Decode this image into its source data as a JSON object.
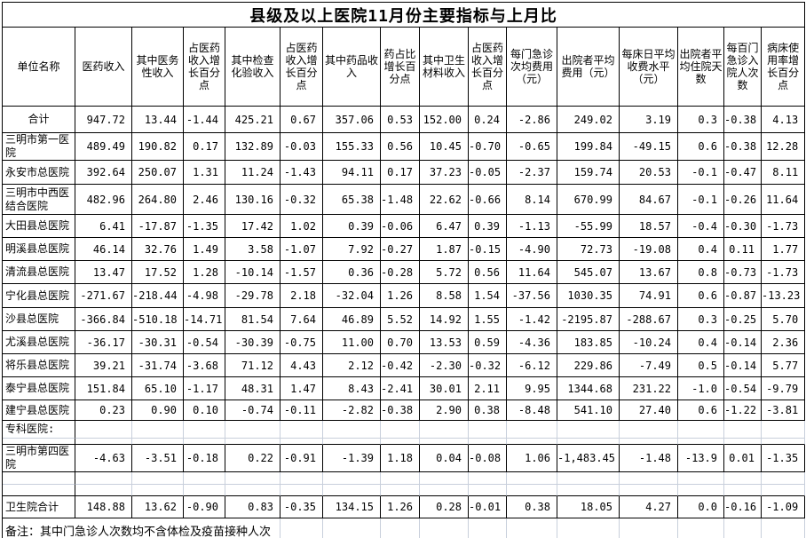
{
  "title": "县级及以上医院11月份主要指标与上月比",
  "note": "备注：其中门急诊人次数均不含体检及疫苗接种人次",
  "columns": [
    "单位名称",
    "医药收入",
    "其中医务性收入",
    "占医药收入增长百分点",
    "其中检查化验收入",
    "占医药收入增长百分点",
    "其中药品收入",
    "药占比增长百分点",
    "其中卫生材料收入",
    "占医药收入增长百分点",
    "每门急诊次均费用（元）",
    "出院者平均费用（元）",
    "每床日平均收费水平（元）",
    "出院者平均住院天数",
    "每百门急诊入院人次数",
    "病床使用率增长百分点"
  ],
  "rows": [
    {
      "type": "total",
      "name": "合计",
      "values": [
        "947.72",
        "13.44",
        "-1.44",
        "425.21",
        "0.67",
        "357.06",
        "0.53",
        "152.00",
        "0.24",
        "-2.86",
        "249.02",
        "3.19",
        "0.3",
        "-0.38",
        "4.13"
      ]
    },
    {
      "type": "hospital",
      "name": "三明市第一医院",
      "values": [
        "489.49",
        "190.82",
        "0.17",
        "132.89",
        "-0.03",
        "155.33",
        "0.56",
        "10.45",
        "-0.70",
        "-0.65",
        "199.84",
        "-49.15",
        "0.6",
        "-0.38",
        "12.28"
      ]
    },
    {
      "type": "hospital",
      "name": "永安市总医院",
      "values": [
        "392.64",
        "250.07",
        "1.31",
        "11.24",
        "-1.43",
        "94.11",
        "0.17",
        "37.23",
        "-0.05",
        "-2.37",
        "159.74",
        "20.53",
        "-0.1",
        "-0.47",
        "8.11"
      ]
    },
    {
      "type": "hospital",
      "name": "三明市中西医结合医院",
      "values": [
        "482.96",
        "264.80",
        "2.46",
        "130.16",
        "-0.32",
        "65.38",
        "-1.48",
        "22.62",
        "-0.66",
        "8.14",
        "670.99",
        "84.67",
        "-0.1",
        "-0.26",
        "11.64"
      ]
    },
    {
      "type": "hospital",
      "name": "大田县总医院",
      "values": [
        "6.41",
        "-17.87",
        "-1.35",
        "17.42",
        "1.02",
        "0.39",
        "-0.06",
        "6.47",
        "0.39",
        "-1.13",
        "-55.99",
        "18.57",
        "-0.4",
        "-0.30",
        "-1.73"
      ]
    },
    {
      "type": "hospital",
      "name": "明溪县总医院",
      "values": [
        "46.14",
        "32.76",
        "1.49",
        "3.58",
        "-1.07",
        "7.92",
        "-0.27",
        "1.87",
        "-0.15",
        "-4.90",
        "72.73",
        "-19.08",
        "0.4",
        "0.11",
        "1.77"
      ]
    },
    {
      "type": "hospital",
      "name": "清流县总医院",
      "values": [
        "13.47",
        "17.52",
        "1.28",
        "-10.14",
        "-1.57",
        "0.36",
        "-0.28",
        "5.72",
        "0.56",
        "11.64",
        "545.07",
        "13.67",
        "0.8",
        "-0.73",
        "-1.73"
      ]
    },
    {
      "type": "hospital",
      "name": "宁化县总医院",
      "values": [
        "-271.67",
        "-218.44",
        "-4.98",
        "-29.78",
        "2.18",
        "-32.04",
        "1.26",
        "8.58",
        "1.54",
        "-37.56",
        "1030.35",
        "74.91",
        "0.6",
        "-0.87",
        "-13.23"
      ]
    },
    {
      "type": "hospital",
      "name": "沙县总医院",
      "values": [
        "-366.84",
        "-510.18",
        "-14.71",
        "81.54",
        "7.64",
        "46.89",
        "5.52",
        "14.92",
        "1.55",
        "-1.42",
        "-2195.87",
        "-288.67",
        "0.3",
        "-0.25",
        "5.70"
      ]
    },
    {
      "type": "hospital",
      "name": "尤溪县总医院",
      "values": [
        "-36.17",
        "-30.31",
        "-0.54",
        "-30.39",
        "-0.75",
        "11.00",
        "0.70",
        "13.53",
        "0.59",
        "-4.36",
        "183.85",
        "-10.24",
        "0.4",
        "-0.14",
        "2.36"
      ]
    },
    {
      "type": "hospital",
      "name": "将乐县总医院",
      "values": [
        "39.21",
        "-31.74",
        "-3.68",
        "71.12",
        "4.43",
        "2.12",
        "-0.42",
        "-2.30",
        "-0.32",
        "-6.12",
        "229.86",
        "-7.49",
        "0.5",
        "-0.14",
        "5.77"
      ]
    },
    {
      "type": "hospital",
      "name": "泰宁县总医院",
      "values": [
        "151.84",
        "65.10",
        "-1.17",
        "48.31",
        "1.47",
        "8.43",
        "-2.41",
        "30.01",
        "2.11",
        "9.95",
        "1344.68",
        "231.22",
        "-1.0",
        "-0.54",
        "-9.79"
      ]
    },
    {
      "type": "hospital",
      "name": "建宁县总医院",
      "values": [
        "0.23",
        "0.90",
        "0.10",
        "-0.74",
        "-0.11",
        "-2.82",
        "-0.38",
        "2.90",
        "0.38",
        "-8.48",
        "541.10",
        "27.40",
        "0.6",
        "-1.22",
        "-3.81"
      ]
    },
    {
      "type": "section",
      "name": "专科医院:",
      "values": []
    },
    {
      "type": "spacer",
      "name": "",
      "values": []
    },
    {
      "type": "hospital",
      "name": "三明市第四医院",
      "values": [
        "-4.63",
        "-3.51",
        "-0.18",
        "0.22",
        "-0.91",
        "-1.39",
        "1.18",
        "0.04",
        "-0.08",
        "1.06",
        "-1,483.45",
        "-1.48",
        "-13.9",
        "0.01",
        "-1.35"
      ]
    },
    {
      "type": "spacer",
      "name": "",
      "values": []
    },
    {
      "type": "spacer",
      "name": "",
      "values": []
    },
    {
      "type": "subtotal",
      "name": "卫生院合计",
      "values": [
        "148.88",
        "13.62",
        "-0.90",
        "0.83",
        "-0.35",
        "134.15",
        "1.26",
        "0.28",
        "-0.01",
        "0.38",
        "18.05",
        "4.27",
        "0.0",
        "-0.16",
        "-1.09"
      ]
    }
  ]
}
